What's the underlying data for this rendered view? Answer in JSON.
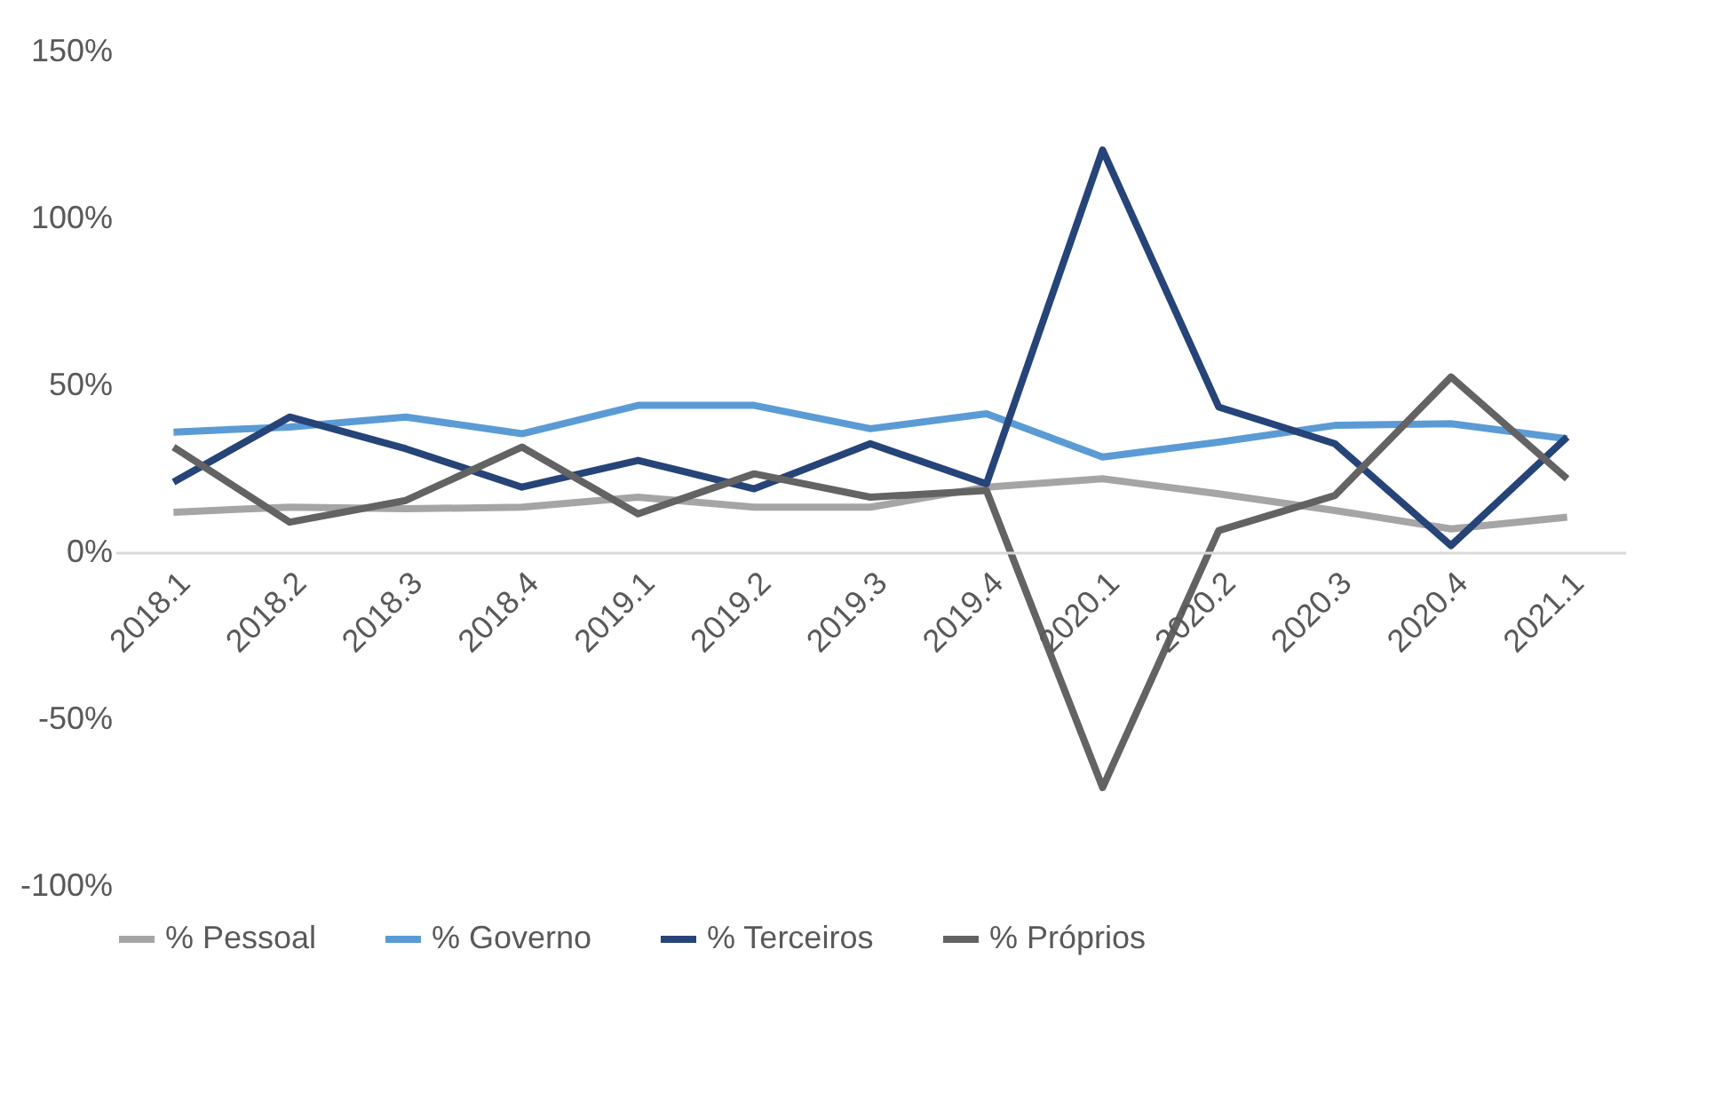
{
  "chart_data": {
    "type": "line",
    "categories": [
      "2018.1",
      "2018.2",
      "2018.3",
      "2018.4",
      "2019.1",
      "2019.2",
      "2019.3",
      "2019.4",
      "2020.1",
      "2020.2",
      "2020.3",
      "2020.4",
      "2021.1"
    ],
    "series": [
      {
        "name": "% Pessoal",
        "color": "#a5a5a5",
        "values": [
          12,
          13.5,
          13,
          13.5,
          16.5,
          13.5,
          13.5,
          19.5,
          22,
          17.5,
          12.5,
          7,
          10.5
        ]
      },
      {
        "name": "% Governo",
        "color": "#5b9bd5",
        "values": [
          36,
          37.5,
          40.5,
          35.5,
          44,
          44,
          37,
          41.5,
          28.5,
          33,
          38,
          38.5,
          34
        ]
      },
      {
        "name": "% Terceiros",
        "color": "#264478",
        "values": [
          21,
          40.5,
          31,
          19.5,
          27.5,
          19,
          32.5,
          20.5,
          120.5,
          43.5,
          32.5,
          2,
          34.5
        ]
      },
      {
        "name": "% Próprios",
        "color": "#636363",
        "values": [
          31.5,
          9,
          15.5,
          31.5,
          11.5,
          23.5,
          16.5,
          18.5,
          -70.5,
          6.5,
          17,
          52.5,
          22
        ]
      }
    ],
    "ylim": [
      -100,
      150
    ],
    "yticks": [
      {
        "value": -100,
        "label": "-100%"
      },
      {
        "value": -50,
        "label": "-50%"
      },
      {
        "value": 0,
        "label": "0%"
      },
      {
        "value": 50,
        "label": "50%"
      },
      {
        "value": 100,
        "label": "100%"
      },
      {
        "value": 150,
        "label": "150%"
      }
    ],
    "grid": false,
    "legend": "bottom",
    "marker": "none",
    "line_style": "solid"
  }
}
